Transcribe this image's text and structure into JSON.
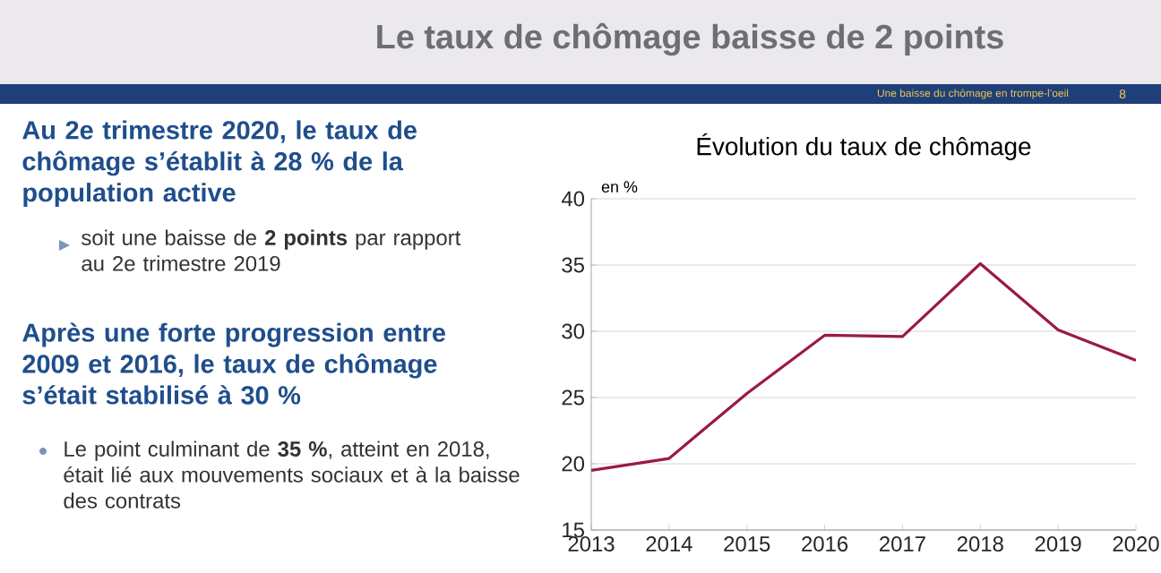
{
  "chart_data": {
    "type": "line",
    "title": "Le taux de chômage baisse de 2 points",
    "subtitle": "Évolution du taux de chômage",
    "ylabel": "en %",
    "x": [
      2013,
      2014,
      2015,
      2016,
      2017,
      2018,
      2019,
      2020
    ],
    "series": [
      {
        "color": "#9b1b3e",
        "values": [
          19.5,
          20.4,
          25.3,
          29.7,
          29.6,
          35.1,
          30.1,
          27.8
        ]
      }
    ],
    "xlim": [
      2013,
      2020
    ],
    "xticks": [
      2013,
      2014,
      2015,
      2016,
      2017,
      2018,
      2019,
      2020
    ],
    "ylim": [
      15,
      40
    ],
    "yticks": [
      15,
      20,
      25,
      30,
      35,
      40
    ],
    "grid": "y",
    "marker": "none",
    "line_style": "solid",
    "annotations": [
      "Une baisse du chômage en trompe-l’oeil",
      "8",
      "Au 2e trimestre 2020, le taux de chômage s’établit à 28 % de la population active",
      "soit une baisse de **2 points** par rapport au 2e trimestre 2019",
      "Après une forte progression entre 2009 et 2016, le taux de chômage s’était stabilisé à 30 %",
      "Le point culminant de **35 %**, atteint en 2018, était lié aux mouvements sociaux et à la baisse des contrats"
    ]
  }
}
